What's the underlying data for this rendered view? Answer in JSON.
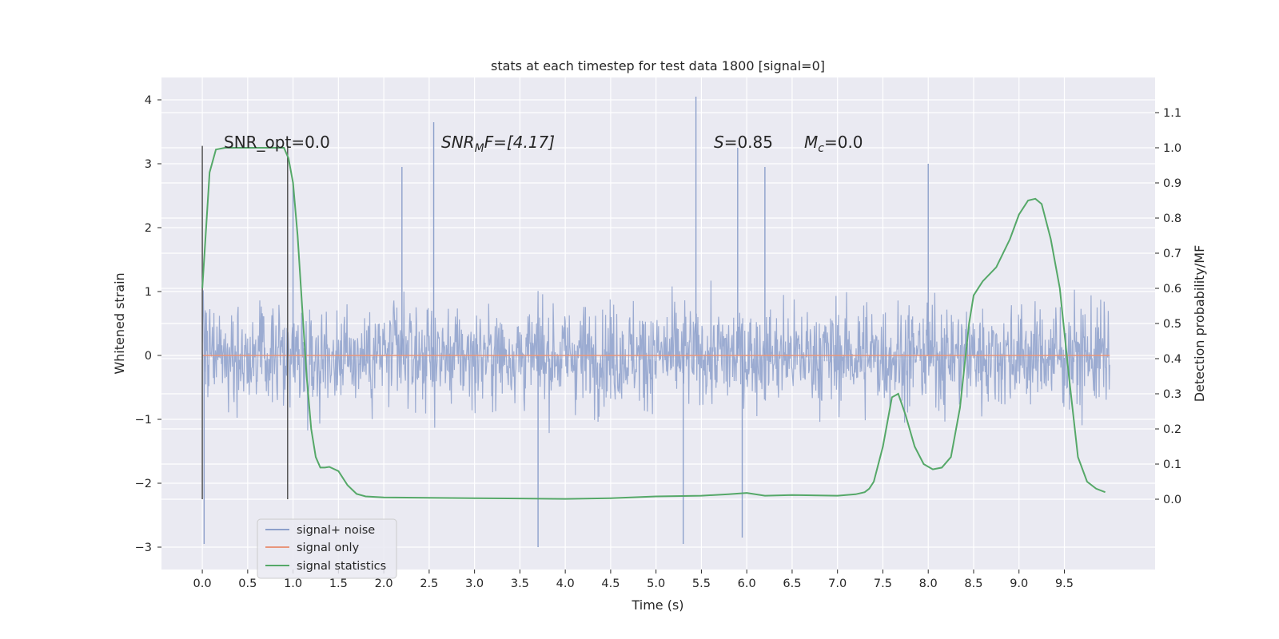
{
  "chart_data": {
    "type": "line",
    "title": "stats at each timestep for test data 1800 [signal=0]",
    "xlabel": "Time (s)",
    "ylabel": "Whitened strain",
    "y2label": "Detection probability/MF",
    "xlim": [
      -0.45,
      10.5
    ],
    "ylim": [
      -3.35,
      4.35
    ],
    "y2lim": [
      -0.2,
      1.2
    ],
    "grid": true,
    "background": "#eaeaf2",
    "x_ticks": [
      "0.0",
      "0.5",
      "1.0",
      "1.5",
      "2.0",
      "2.5",
      "3.0",
      "3.5",
      "4.0",
      "4.5",
      "5.0",
      "5.5",
      "6.0",
      "6.5",
      "7.0",
      "7.5",
      "8.0",
      "8.5",
      "9.0",
      "9.5"
    ],
    "y_ticks": [
      "4",
      "3",
      "2",
      "1",
      "0",
      "−1",
      "−2",
      "−3"
    ],
    "y2_ticks": [
      "1.1",
      "1.0",
      "0.9",
      "0.8",
      "0.7",
      "0.6",
      "0.5",
      "0.4",
      "0.3",
      "0.2",
      "0.1",
      "0.0"
    ],
    "legend_placement": "lower-left",
    "annotations": {
      "snr_opt": "SNR_opt=0.0",
      "snr_mf_main": "SNR",
      "snr_mf_sub": "M",
      "snr_mf_rest": "F=[4.17]",
      "s_main": "S",
      "s_rest": "=0.85",
      "mc_main": "M",
      "mc_sub": "c",
      "mc_rest": "=0.0"
    },
    "markers_x": [
      0.0,
      0.94
    ],
    "series": [
      {
        "name": "signal+ noise",
        "color": "#8da0cb",
        "axis": "left",
        "x_range": [
          0.0,
          10.0
        ],
        "envelope_typical": [
          -1.6,
          1.7
        ],
        "peaks": [
          {
            "x": 5.44,
            "y": 4.05
          },
          {
            "x": 2.55,
            "y": 3.65
          },
          {
            "x": 5.9,
            "y": 3.25
          },
          {
            "x": 5.3,
            "y": -2.95
          },
          {
            "x": 3.7,
            "y": -3.0
          },
          {
            "x": 0.02,
            "y": -2.95
          },
          {
            "x": 6.2,
            "y": 2.95
          },
          {
            "x": 8.0,
            "y": 3.0
          },
          {
            "x": 5.95,
            "y": -2.85
          },
          {
            "x": 1.0,
            "y": 2.7
          },
          {
            "x": 2.2,
            "y": 2.95
          }
        ]
      },
      {
        "name": "signal only",
        "color": "#e8967b",
        "axis": "left",
        "x": [
          0.0,
          10.0
        ],
        "y": [
          0.0,
          0.0
        ]
      },
      {
        "name": "signal statistics",
        "color": "#55a868",
        "axis": "right",
        "x": [
          0.0,
          0.08,
          0.15,
          0.25,
          0.4,
          0.6,
          0.8,
          0.9,
          0.95,
          1.0,
          1.05,
          1.1,
          1.15,
          1.2,
          1.25,
          1.3,
          1.35,
          1.4,
          1.5,
          1.6,
          1.7,
          1.8,
          2.0,
          2.5,
          3.0,
          3.5,
          4.0,
          4.5,
          5.0,
          5.5,
          5.8,
          6.0,
          6.2,
          6.5,
          7.0,
          7.2,
          7.3,
          7.35,
          7.4,
          7.5,
          7.6,
          7.67,
          7.75,
          7.85,
          7.95,
          8.05,
          8.15,
          8.25,
          8.35,
          8.45,
          8.5,
          8.6,
          8.75,
          8.9,
          9.0,
          9.1,
          9.18,
          9.25,
          9.35,
          9.45,
          9.55,
          9.65,
          9.75,
          9.85,
          9.95
        ],
        "y": [
          0.6,
          0.93,
          0.995,
          1.0,
          1.0,
          1.0,
          1.0,
          1.0,
          0.97,
          0.9,
          0.75,
          0.55,
          0.35,
          0.2,
          0.12,
          0.09,
          0.09,
          0.092,
          0.08,
          0.04,
          0.015,
          0.008,
          0.005,
          0.004,
          0.003,
          0.002,
          0.001,
          0.003,
          0.008,
          0.01,
          0.014,
          0.018,
          0.01,
          0.012,
          0.01,
          0.014,
          0.02,
          0.03,
          0.05,
          0.15,
          0.29,
          0.3,
          0.24,
          0.15,
          0.1,
          0.085,
          0.09,
          0.12,
          0.26,
          0.5,
          0.58,
          0.62,
          0.66,
          0.74,
          0.81,
          0.85,
          0.855,
          0.84,
          0.74,
          0.6,
          0.35,
          0.12,
          0.05,
          0.03,
          0.02
        ]
      }
    ]
  }
}
